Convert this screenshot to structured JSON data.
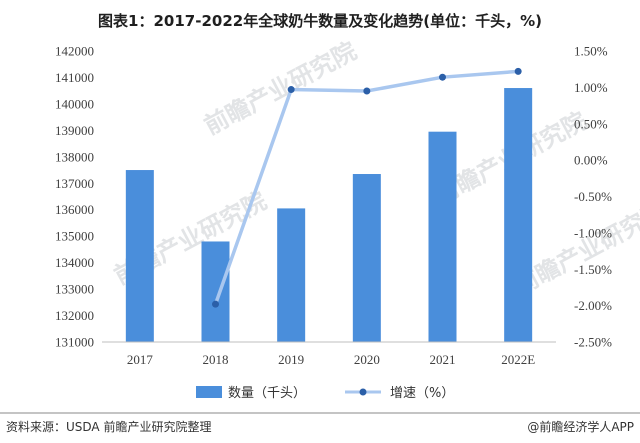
{
  "title": "图表1：2017-2022年全球奶牛数量及变化趋势(单位：千头，%)",
  "watermark_text": "前瞻产业研究院",
  "source": "资料来源：USDA 前瞻产业研究院整理",
  "brand": "@前瞻经济学人APP",
  "colors": {
    "bar": "#4a8edb",
    "line": "#a9c7ef",
    "marker": "#2b5fa8",
    "title": "#1f1f1f"
  },
  "chart_data": {
    "type": "bar",
    "title": "图表1：2017-2022年全球奶牛数量及变化趋势(单位：千头，%)",
    "categories": [
      "2017",
      "2018",
      "2019",
      "2020",
      "2021",
      "2022E"
    ],
    "series": [
      {
        "name": "数量（千头）",
        "type": "bar",
        "axis": "left",
        "values": [
          137500,
          134800,
          136050,
          137350,
          138950,
          140600
        ]
      },
      {
        "name": "增速（%）",
        "type": "line",
        "axis": "right",
        "values": [
          null,
          -1.98,
          0.97,
          0.95,
          1.14,
          1.22
        ]
      }
    ],
    "y_left": {
      "min": 131000,
      "max": 142000,
      "step": 1000,
      "ticks": [
        "131000",
        "132000",
        "133000",
        "134000",
        "135000",
        "136000",
        "137000",
        "138000",
        "139000",
        "140000",
        "141000",
        "142000"
      ]
    },
    "y_right": {
      "min": -2.5,
      "max": 1.5,
      "step": 0.5,
      "ticks": [
        "-2.50%",
        "-2.00%",
        "-1.50%",
        "-1.00%",
        "-0.50%",
        "0.00%",
        "0.50%",
        "1.00%",
        "1.50%"
      ]
    },
    "grid": false,
    "legend": "bottom"
  }
}
